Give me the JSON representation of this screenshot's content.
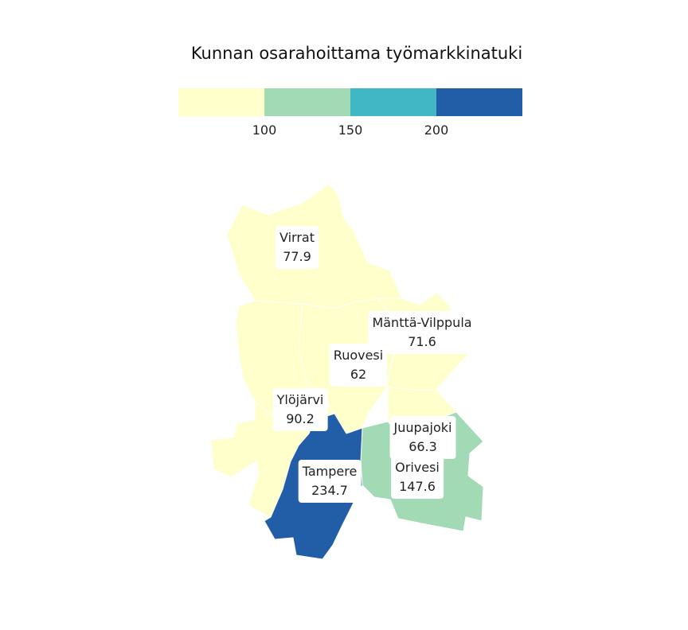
{
  "title": "Kunnan osarahoittama työmarkkinatuki",
  "legend": {
    "bins": [
      {
        "color": "#ffffcc"
      },
      {
        "color": "#a1dab4"
      },
      {
        "color": "#41b6c4"
      },
      {
        "color": "#225ea8"
      }
    ],
    "ticks": [
      {
        "label": "100",
        "value": 100
      },
      {
        "label": "150",
        "value": 150
      },
      {
        "label": "200",
        "value": 200
      }
    ]
  },
  "municipalities": [
    {
      "name": "Virrat",
      "value": "77.9",
      "color": "#ffffcc"
    },
    {
      "name": "Mänttä-Vilppula",
      "value": "71.6",
      "color": "#ffffcc"
    },
    {
      "name": "Ruovesi",
      "value": "62",
      "color": "#ffffcc"
    },
    {
      "name": "Ylöjärvi",
      "value": "90.2",
      "color": "#ffffcc"
    },
    {
      "name": "Juupajoki",
      "value": "66.3",
      "color": "#ffffcc"
    },
    {
      "name": "Orivesi",
      "value": "147.6",
      "color": "#a1dab4"
    },
    {
      "name": "Tampere",
      "value": "234.7",
      "color": "#225ea8"
    }
  ]
}
